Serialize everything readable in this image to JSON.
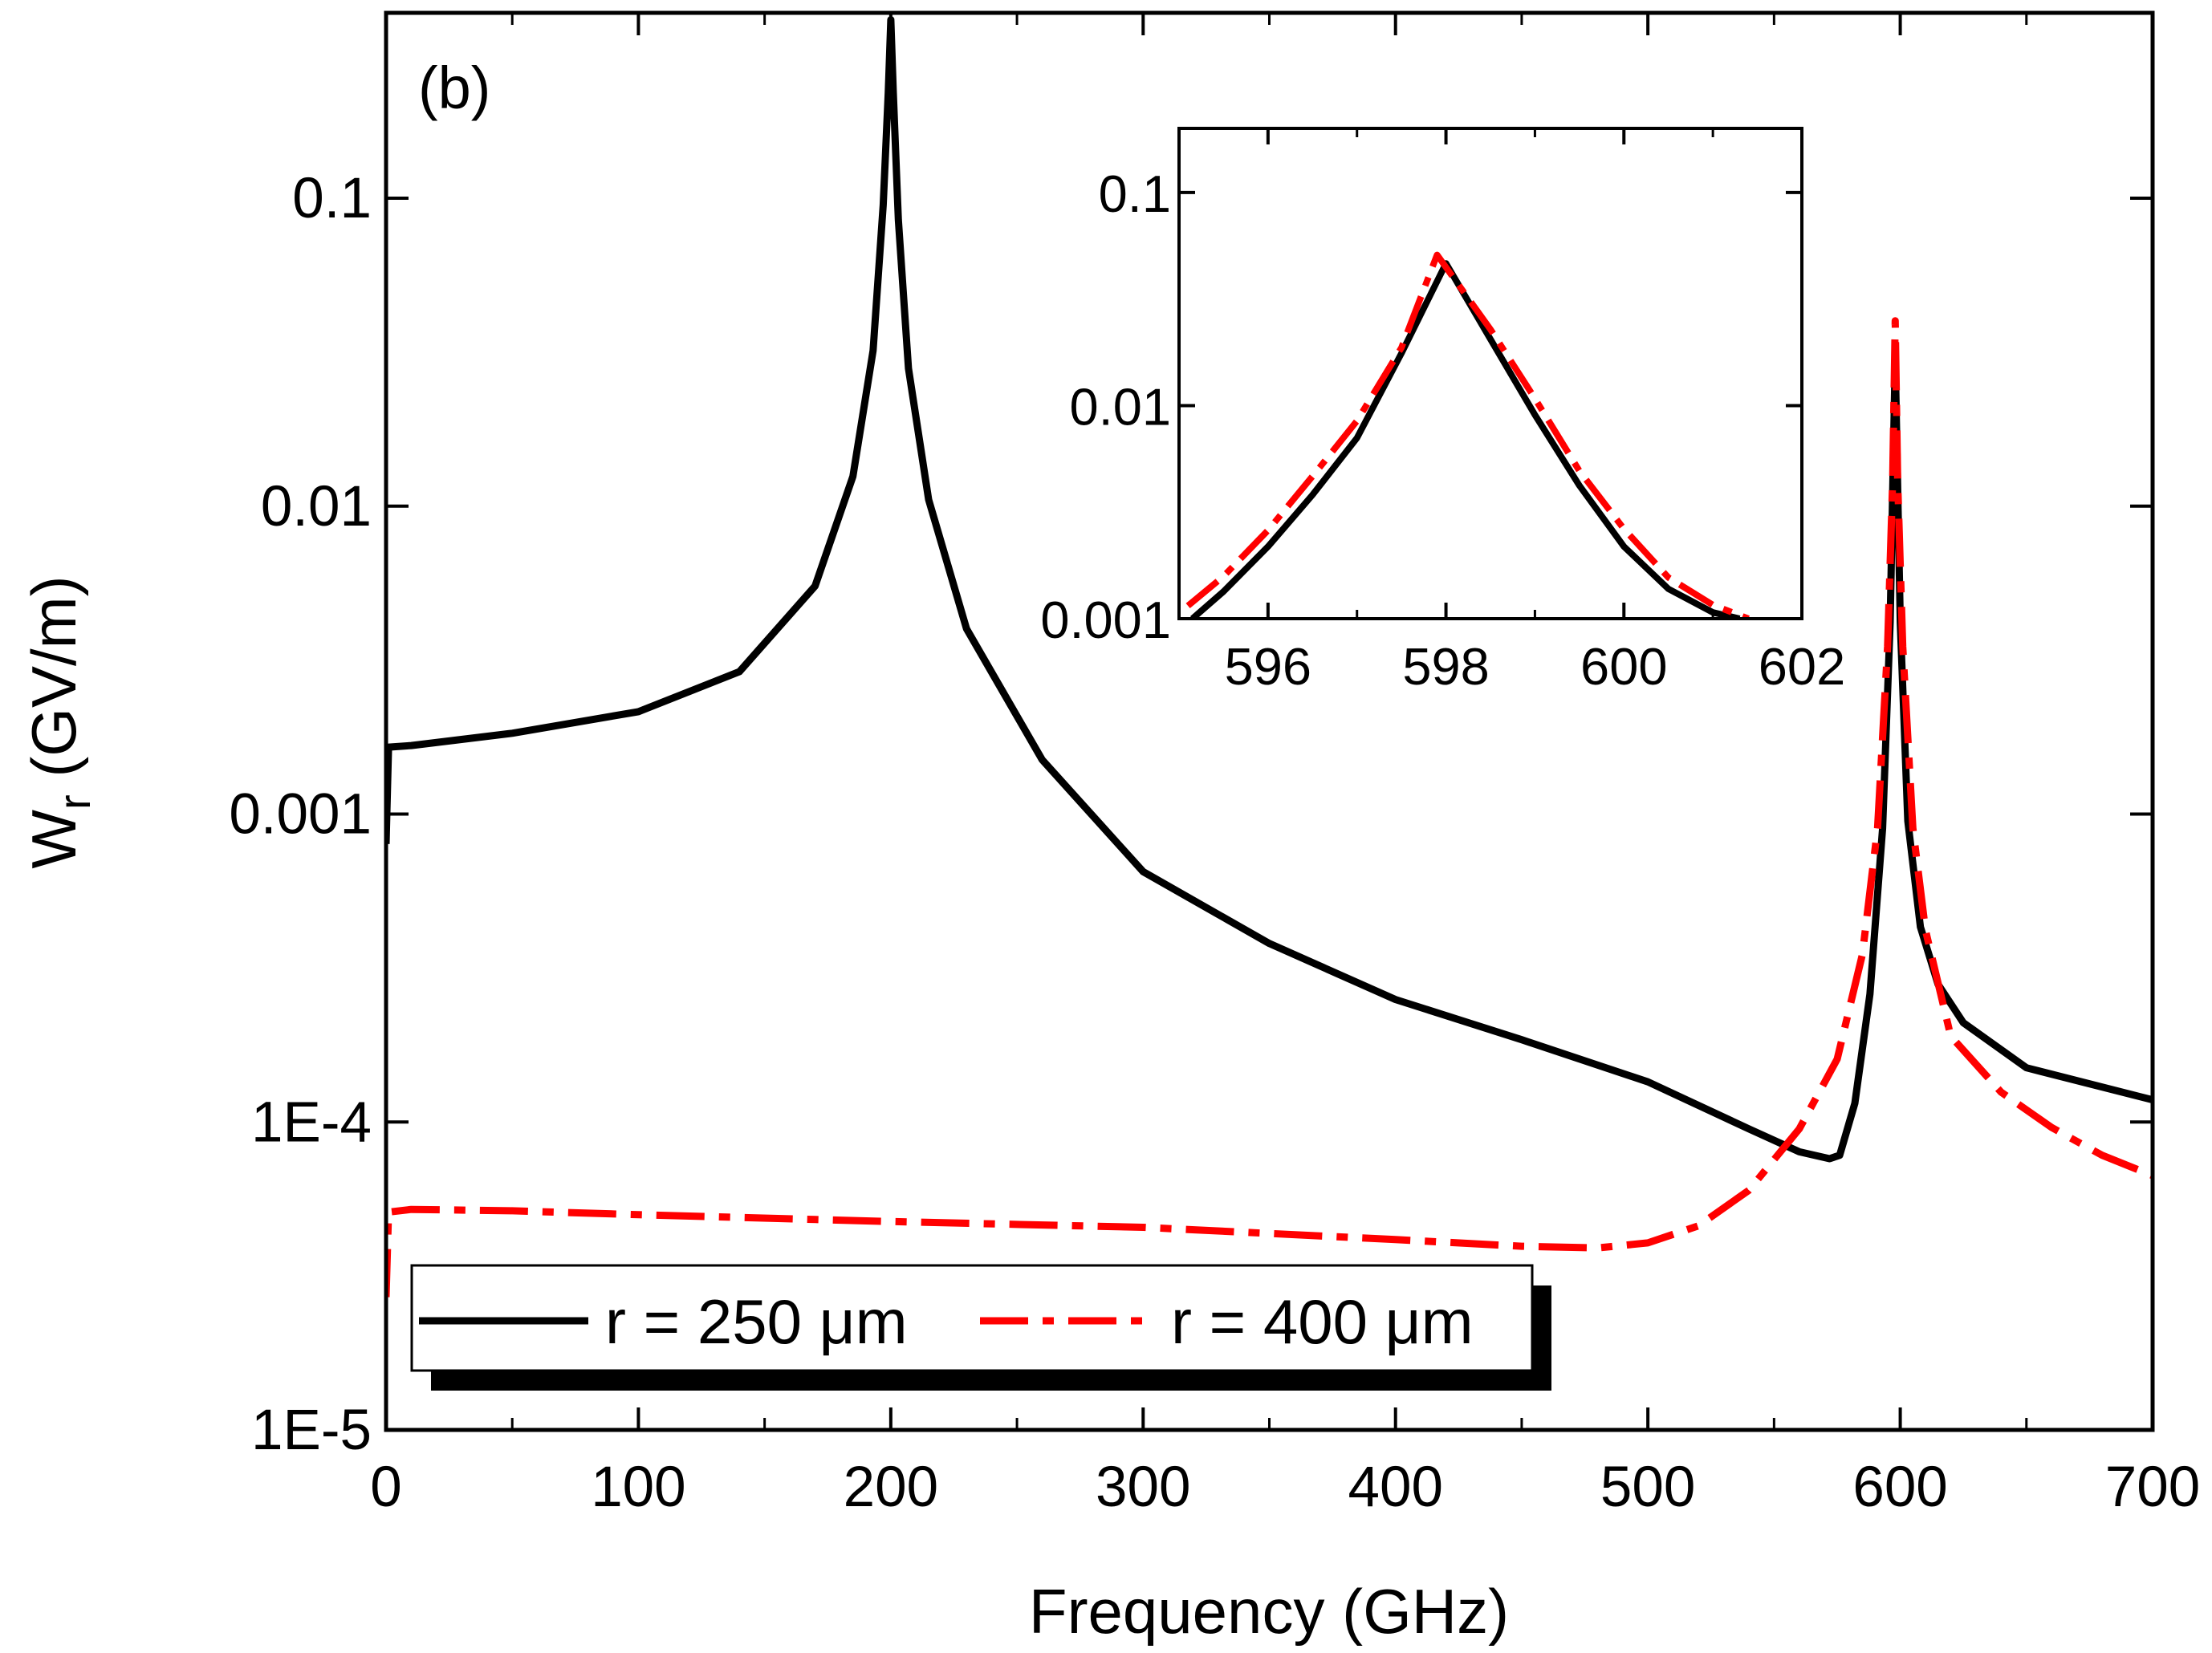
{
  "chart_data": {
    "type": "line",
    "title": "",
    "panel_label": "(b)",
    "xlabel": "Frequency (GHz)",
    "ylabel_main": "W",
    "ylabel_sub": "r",
    "ylabel_unit": " (GV/m)",
    "yscale": "log",
    "xlim": [
      0,
      700
    ],
    "ylim": [
      1e-05,
      0.4
    ],
    "x_ticks": [
      0,
      100,
      200,
      300,
      400,
      500,
      600,
      700
    ],
    "x_tick_labels": [
      "0",
      "100",
      "200",
      "300",
      "400",
      "500",
      "600",
      "700"
    ],
    "y_ticks": [
      1e-05,
      0.0001,
      0.001,
      0.01,
      0.1
    ],
    "y_tick_labels": [
      "1E-5",
      "1E-4",
      "0.001",
      "0.01",
      "0.1"
    ],
    "legend_position": "bottom-left",
    "series": [
      {
        "name": "r = 250 μm",
        "color": "#000000",
        "style": "solid",
        "x": [
          0,
          1,
          10,
          50,
          100,
          140,
          170,
          185,
          193,
          197,
          199,
          200,
          201,
          203,
          207,
          215,
          230,
          260,
          300,
          350,
          400,
          450,
          500,
          540,
          560,
          572,
          576,
          582,
          588,
          593,
          596,
          598,
          600,
          603,
          608,
          615,
          625,
          650,
          700
        ],
        "y": [
          0.0008,
          0.00165,
          0.00167,
          0.00183,
          0.00215,
          0.0029,
          0.0055,
          0.0125,
          0.032,
          0.095,
          0.22,
          0.38,
          0.22,
          0.085,
          0.028,
          0.0105,
          0.004,
          0.0015,
          0.00065,
          0.00038,
          0.00025,
          0.000185,
          0.000135,
          9.5e-05,
          8e-05,
          7.6e-05,
          7.8e-05,
          0.000115,
          0.00026,
          0.0009,
          0.0042,
          0.03,
          0.0042,
          0.00095,
          0.00043,
          0.00028,
          0.00021,
          0.00015,
          0.000118
        ]
      },
      {
        "name": "r = 400 μm",
        "color": "#ff0000",
        "style": "dashdot",
        "x": [
          0,
          1,
          10,
          50,
          100,
          200,
          300,
          400,
          450,
          480,
          500,
          520,
          540,
          560,
          575,
          585,
          591,
          595,
          597,
          598,
          599,
          601,
          605,
          610,
          620,
          640,
          660,
          680,
          700
        ],
        "y": [
          2.7e-05,
          5.1e-05,
          5.2e-05,
          5.15e-05,
          5e-05,
          4.75e-05,
          4.55e-05,
          4.15e-05,
          3.95e-05,
          3.9e-05,
          4.05e-05,
          4.6e-05,
          6e-05,
          9.5e-05,
          0.00016,
          0.00035,
          0.0009,
          0.0035,
          0.012,
          0.04,
          0.012,
          0.0035,
          0.0009,
          0.00042,
          0.00019,
          0.000125,
          9.6e-05,
          7.8e-05,
          6.7e-05
        ]
      }
    ],
    "inset": {
      "type": "line",
      "yscale": "log",
      "xlim": [
        595,
        602
      ],
      "ylim": [
        0.001,
        0.2
      ],
      "x_ticks": [
        596,
        598,
        600,
        602
      ],
      "x_tick_labels": [
        "596",
        "598",
        "600",
        "602"
      ],
      "y_ticks": [
        0.001,
        0.01,
        0.1
      ],
      "y_tick_labels": [
        "0.001",
        "0.01",
        "0.1"
      ],
      "series": [
        {
          "name": "r = 250 μm",
          "color": "#000000",
          "style": "solid",
          "x": [
            595.15,
            595.5,
            596,
            596.5,
            597,
            597.5,
            598,
            598.5,
            599,
            599.5,
            600,
            600.5,
            601,
            601.3
          ],
          "y": [
            0.001,
            0.00134,
            0.00218,
            0.00381,
            0.00705,
            0.0176,
            0.0465,
            0.0205,
            0.00905,
            0.00421,
            0.00218,
            0.00138,
            0.00107,
            0.001
          ]
        },
        {
          "name": "r = 400 μm",
          "color": "#ff0000",
          "style": "dashdot",
          "x": [
            595.1,
            595.5,
            596,
            596.5,
            597,
            597.5,
            597.9,
            598.5,
            599,
            599.5,
            600,
            600.5,
            601,
            601.4
          ],
          "y": [
            0.00115,
            0.00158,
            0.0026,
            0.00466,
            0.00848,
            0.0187,
            0.051,
            0.0228,
            0.0108,
            0.00493,
            0.00264,
            0.00156,
            0.00116,
            0.001
          ]
        }
      ]
    }
  }
}
